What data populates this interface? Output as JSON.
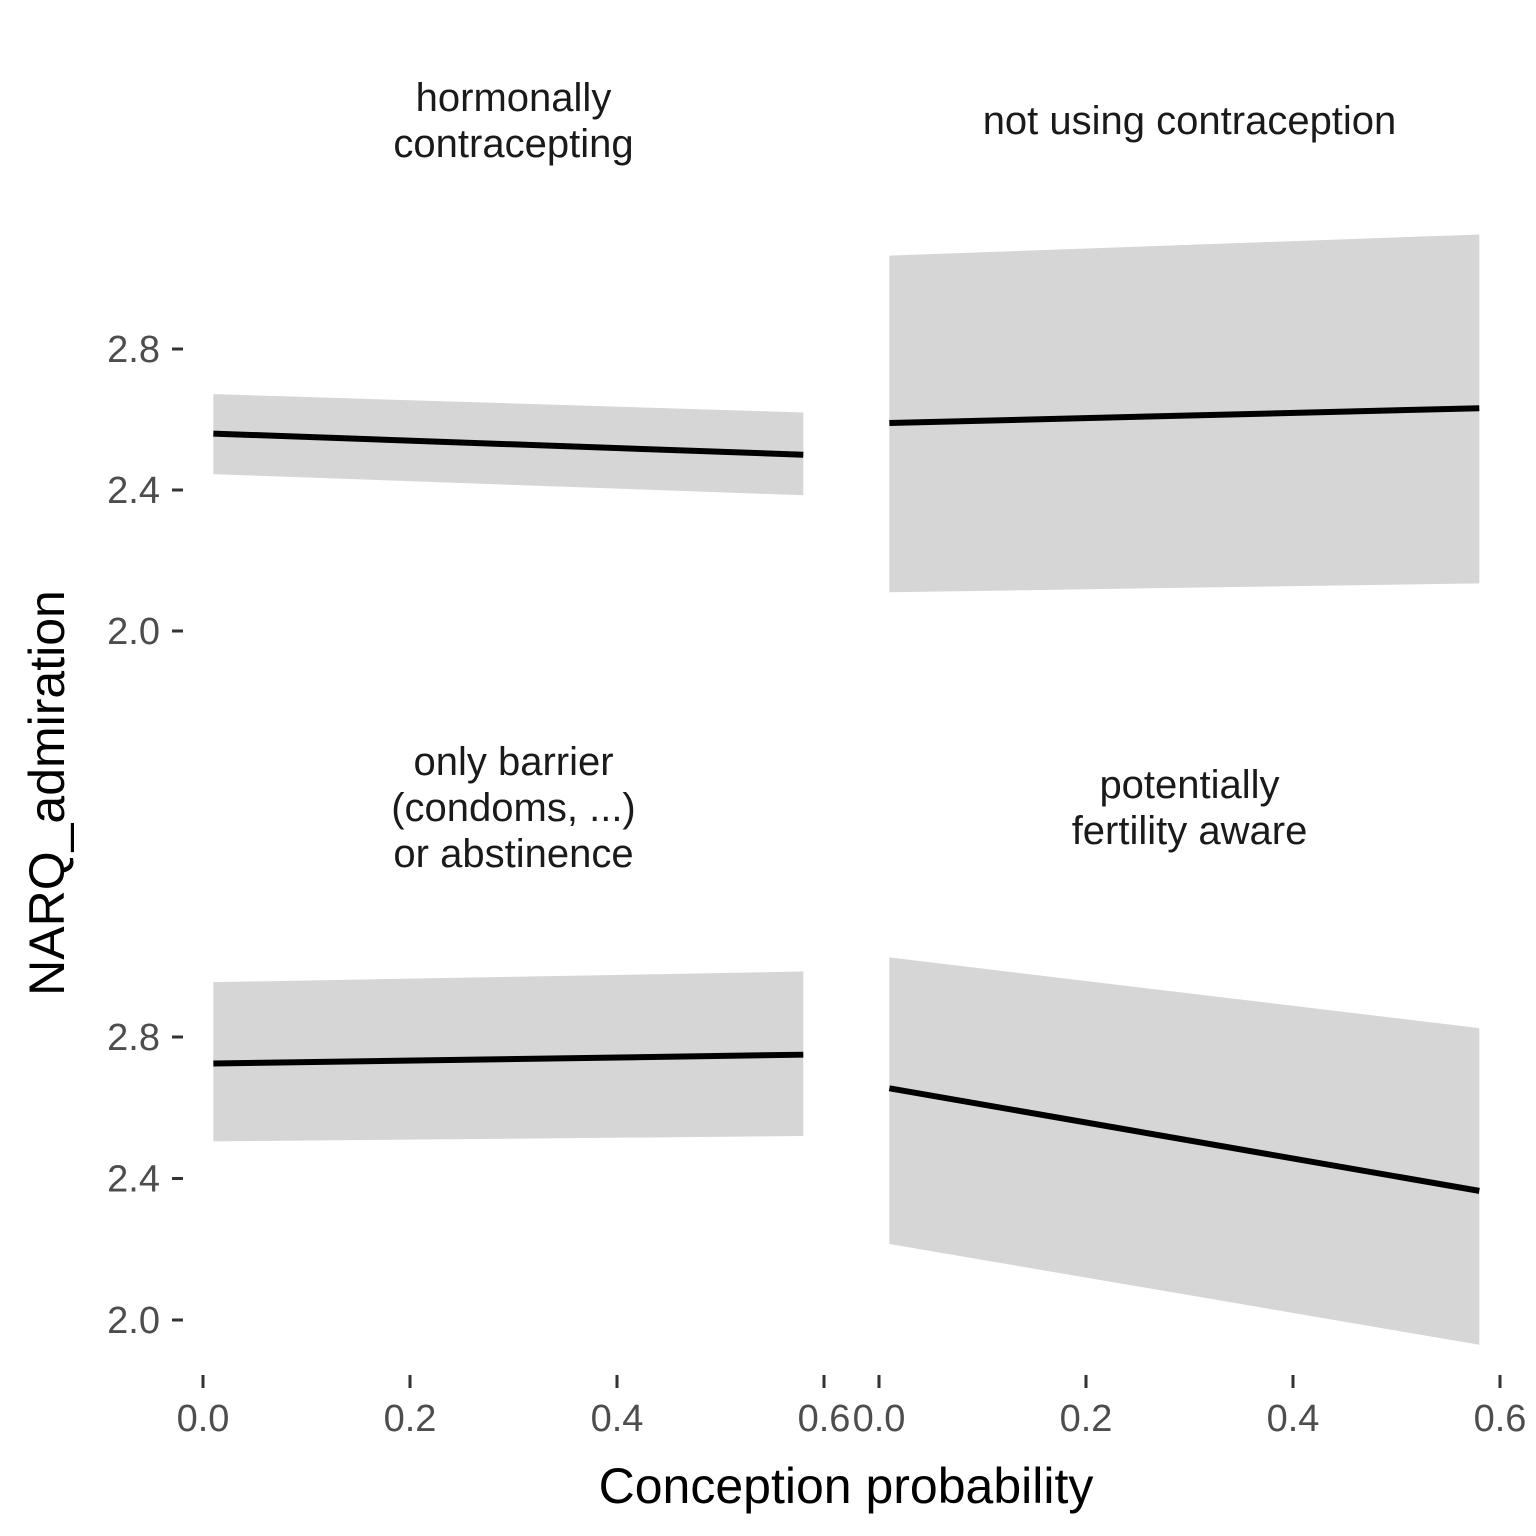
{
  "chart_data": {
    "type": "line",
    "xlabel": "Conception probability",
    "ylabel": "NARQ_admiration",
    "xlim": [
      0,
      0.6
    ],
    "ylim": [
      1.9,
      3.2
    ],
    "x_ticks": [
      "0.0",
      "0.2",
      "0.4",
      "0.6"
    ],
    "y_ticks": [
      "2.0",
      "2.4",
      "2.8"
    ],
    "grid": false,
    "legend": "none",
    "colors": {
      "line": "#000000",
      "ribbon": "#d6d6d6"
    },
    "panels": [
      {
        "title_lines": [
          "hormonally",
          "contracepting"
        ],
        "x": [
          0.01,
          0.58
        ],
        "y": [
          2.56,
          2.5
        ],
        "ci_lower": [
          2.445,
          2.385
        ],
        "ci_upper": [
          2.672,
          2.62
        ]
      },
      {
        "title_lines": [
          "not using contraception"
        ],
        "x": [
          0.01,
          0.58
        ],
        "y": [
          2.59,
          2.632
        ],
        "ci_lower": [
          2.11,
          2.135
        ],
        "ci_upper": [
          3.065,
          3.125
        ]
      },
      {
        "title_lines": [
          "only barrier",
          "(condoms, ...)",
          "or abstinence"
        ],
        "x": [
          0.01,
          0.58
        ],
        "y": [
          2.725,
          2.75
        ],
        "ci_lower": [
          2.505,
          2.52
        ],
        "ci_upper": [
          2.955,
          2.985
        ]
      },
      {
        "title_lines": [
          "potentially",
          "fertility aware"
        ],
        "x": [
          0.01,
          0.58
        ],
        "y": [
          2.655,
          2.365
        ],
        "ci_lower": [
          2.215,
          1.93
        ],
        "ci_upper": [
          3.025,
          2.825
        ]
      }
    ]
  }
}
